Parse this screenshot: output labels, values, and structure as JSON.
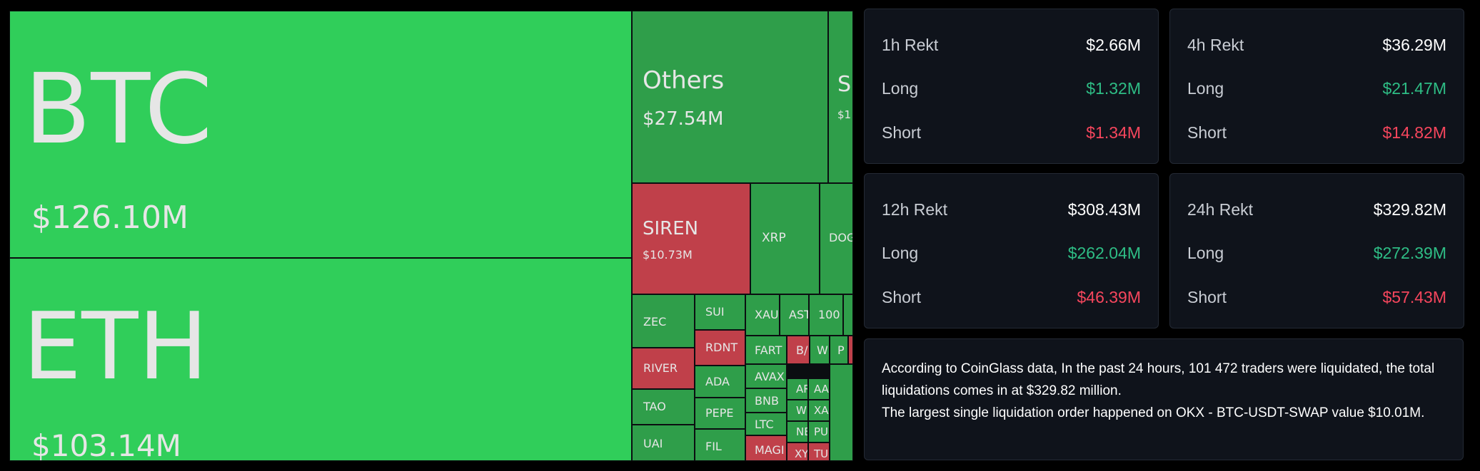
{
  "treemap": {
    "tiles": [
      {
        "symbol": "BTC",
        "value": "$126.10M",
        "color": "#30ce5a"
      },
      {
        "symbol": "ETH",
        "value": "$103.14M",
        "color": "#30ce5a"
      },
      {
        "symbol": "Others",
        "value": "$27.54M",
        "color": "#2f9e4a"
      },
      {
        "symbol": "S",
        "value": "$1",
        "color": "#2f9e4a"
      },
      {
        "symbol": "SIREN",
        "value": "$10.73M",
        "color": "#c0404a"
      },
      {
        "symbol": "XRP",
        "color": "#2f9e4a"
      },
      {
        "symbol": "DOG",
        "color": "#2f9e4a"
      },
      {
        "symbol": "ZEC",
        "color": "#2f9e4a"
      },
      {
        "symbol": "SUI",
        "color": "#2f9e4a"
      },
      {
        "symbol": "XAU",
        "color": "#2f9e4a"
      },
      {
        "symbol": "AST",
        "color": "#2f9e4a"
      },
      {
        "symbol": "100",
        "color": "#2f9e4a"
      },
      {
        "symbol": "RDNT",
        "color": "#c0404a"
      },
      {
        "symbol": "FART",
        "color": "#2f9e4a"
      },
      {
        "symbol": "B/",
        "color": "#c0404a"
      },
      {
        "symbol": "W",
        "color": "#2f9e4a"
      },
      {
        "symbol": "P",
        "color": "#2f9e4a"
      },
      {
        "symbol": "RIVER",
        "color": "#c0404a"
      },
      {
        "symbol": "ADA",
        "color": "#2f9e4a"
      },
      {
        "symbol": "AVAX",
        "color": "#2f9e4a"
      },
      {
        "symbol": "ARI",
        "color": "#2f9e4a"
      },
      {
        "symbol": "AA",
        "color": "#2f9e4a"
      },
      {
        "symbol": "BNB",
        "color": "#2f9e4a"
      },
      {
        "symbol": "WL",
        "color": "#2f9e4a"
      },
      {
        "symbol": "XA",
        "color": "#2f9e4a"
      },
      {
        "symbol": "TAO",
        "color": "#2f9e4a"
      },
      {
        "symbol": "PEPE",
        "color": "#2f9e4a"
      },
      {
        "symbol": "LTC",
        "color": "#2f9e4a"
      },
      {
        "symbol": "NE",
        "color": "#2f9e4a"
      },
      {
        "symbol": "PU",
        "color": "#2f9e4a"
      },
      {
        "symbol": "UAI",
        "color": "#2f9e4a"
      },
      {
        "symbol": "FIL",
        "color": "#2f9e4a"
      },
      {
        "symbol": "MAGI",
        "color": "#c0404a"
      },
      {
        "symbol": "XYZ",
        "color": "#c0404a"
      },
      {
        "symbol": "TU",
        "color": "#c0404a"
      }
    ]
  },
  "stats": {
    "h1": {
      "title": "1h Rekt",
      "total": "$2.66M",
      "long_label": "Long",
      "long": "$1.32M",
      "short_label": "Short",
      "short": "$1.34M"
    },
    "h4": {
      "title": "4h Rekt",
      "total": "$36.29M",
      "long_label": "Long",
      "long": "$21.47M",
      "short_label": "Short",
      "short": "$14.82M"
    },
    "h12": {
      "title": "12h Rekt",
      "total": "$308.43M",
      "long_label": "Long",
      "long": "$262.04M",
      "short_label": "Short",
      "short": "$46.39M"
    },
    "h24": {
      "title": "24h Rekt",
      "total": "$329.82M",
      "long_label": "Long",
      "long": "$272.39M",
      "short_label": "Short",
      "short": "$57.43M"
    }
  },
  "summary": {
    "line1": "According to CoinGlass data, In the past 24 hours, 101 472 traders were liquidated, the total liquidations comes in at $329.82 million.",
    "line2": "The largest single liquidation order happened on OKX - BTC-USDT-SWAP value $10.01M."
  },
  "colors": {
    "long": "#2ebd85",
    "short": "#f6465d",
    "bright_green": "#30ce5a",
    "dark_green": "#2f9e4a",
    "red": "#c0404a"
  }
}
